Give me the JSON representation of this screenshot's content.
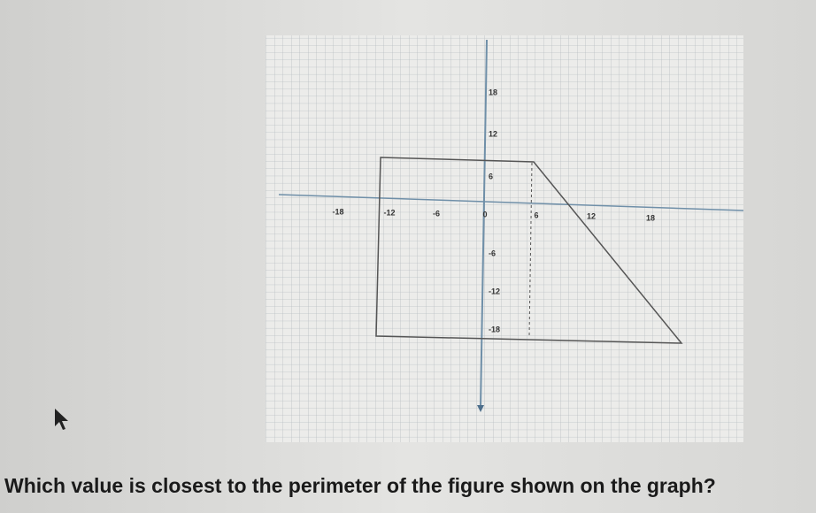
{
  "graph": {
    "x_tick_labels": [
      "-18",
      "-12",
      "-6",
      "0",
      "6",
      "12",
      "18"
    ],
    "y_tick_labels": [
      "18",
      "12",
      "6",
      "-6",
      "-12",
      "-18"
    ]
  },
  "question": "Which value is closest to the perimeter of the figure shown on the graph?"
}
